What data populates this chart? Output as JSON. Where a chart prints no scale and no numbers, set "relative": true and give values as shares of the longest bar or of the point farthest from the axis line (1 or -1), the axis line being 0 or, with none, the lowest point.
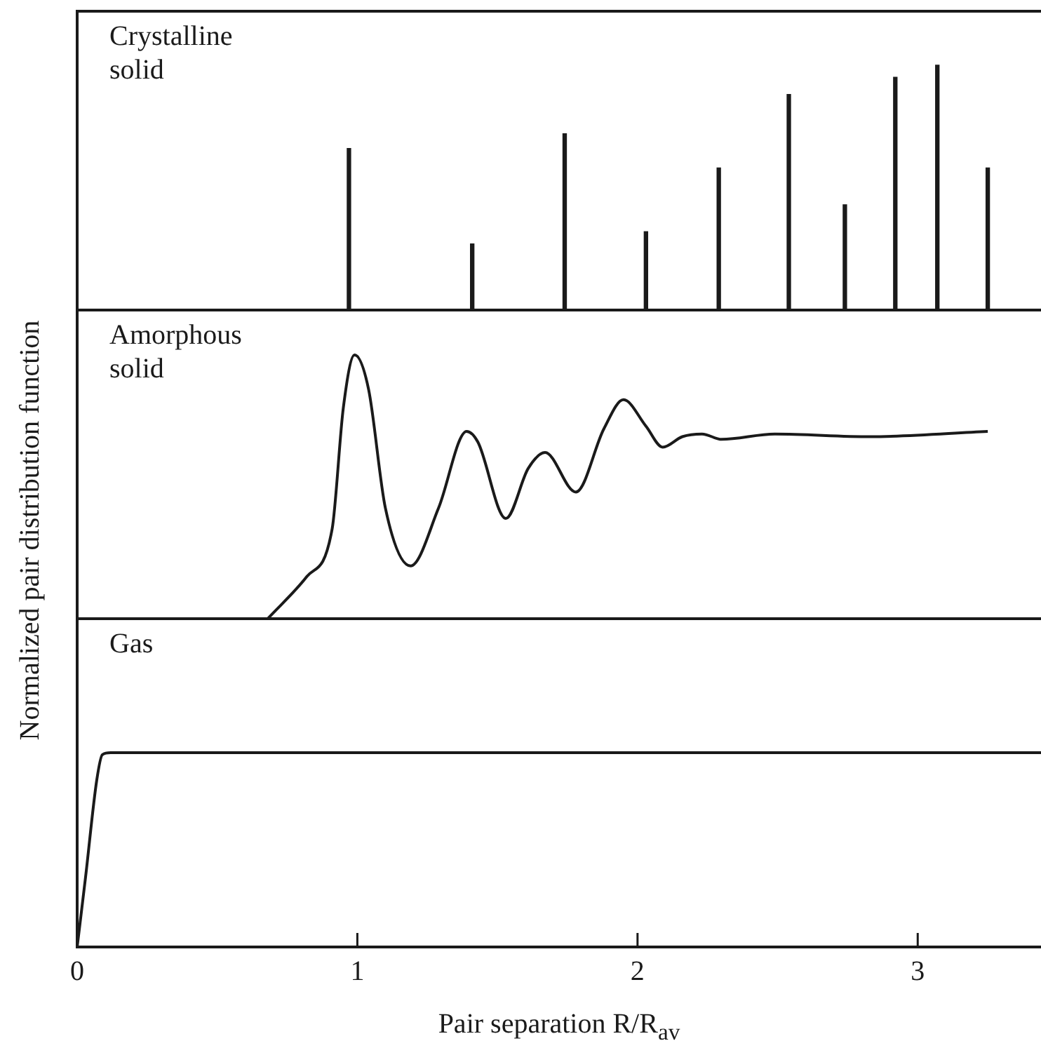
{
  "chart_data": [
    {
      "type": "bar",
      "relative": true,
      "x": [
        0.97,
        1.41,
        1.74,
        2.03,
        2.29,
        2.54,
        2.74,
        2.92,
        3.07,
        3.25
      ],
      "values": [
        0.66,
        0.27,
        0.72,
        0.32,
        0.58,
        0.88,
        0.43,
        0.95,
        1,
        0.58
      ],
      "color": "#1a1a1a",
      "xlim": [
        0,
        3.44
      ],
      "annotations": [
        "Crystalline solid"
      ],
      "tick_labels": false,
      "grid": false,
      "legend": false
    },
    {
      "type": "line",
      "relative": true,
      "x": [
        0.68,
        0.82,
        0.91,
        0.95,
        0.99,
        1.04,
        1.1,
        1.19,
        1.29,
        1.39,
        1.43,
        1.53,
        1.61,
        1.67,
        1.78,
        1.88,
        1.95,
        2.03,
        2.09,
        2.16,
        2.23,
        2.3,
        2.49,
        2.83,
        3.25
      ],
      "values": [
        0,
        0.16,
        0.34,
        0.8,
        1,
        0.87,
        0.42,
        0.2,
        0.42,
        0.71,
        0.67,
        0.38,
        0.57,
        0.63,
        0.48,
        0.72,
        0.83,
        0.73,
        0.65,
        0.69,
        0.7,
        0.68,
        0.7,
        0.69,
        0.71
      ],
      "color": "#1a1a1a",
      "xlim": [
        0,
        3.44
      ],
      "annotations": [
        "Amorphous solid"
      ],
      "ylabel": "Normalized pair distribution function",
      "tick_labels": false,
      "grid": false,
      "legend": false,
      "marker": "none",
      "line_style": "solid"
    },
    {
      "type": "line",
      "relative": true,
      "x": [
        0,
        0.03,
        0.07,
        0.09,
        0.12,
        3.44
      ],
      "values": [
        0,
        0.36,
        0.86,
        0.99,
        1,
        1
      ],
      "color": "#1a1a1a",
      "xlim": [
        0,
        3.44
      ],
      "xticks": [
        0,
        1,
        2,
        3
      ],
      "xlabel": "Pair separation R/R$_{av}$",
      "annotations": [
        "Gas"
      ],
      "tick_labels": "x",
      "grid": false,
      "legend": false,
      "marker": "none",
      "line_style": "solid"
    }
  ]
}
